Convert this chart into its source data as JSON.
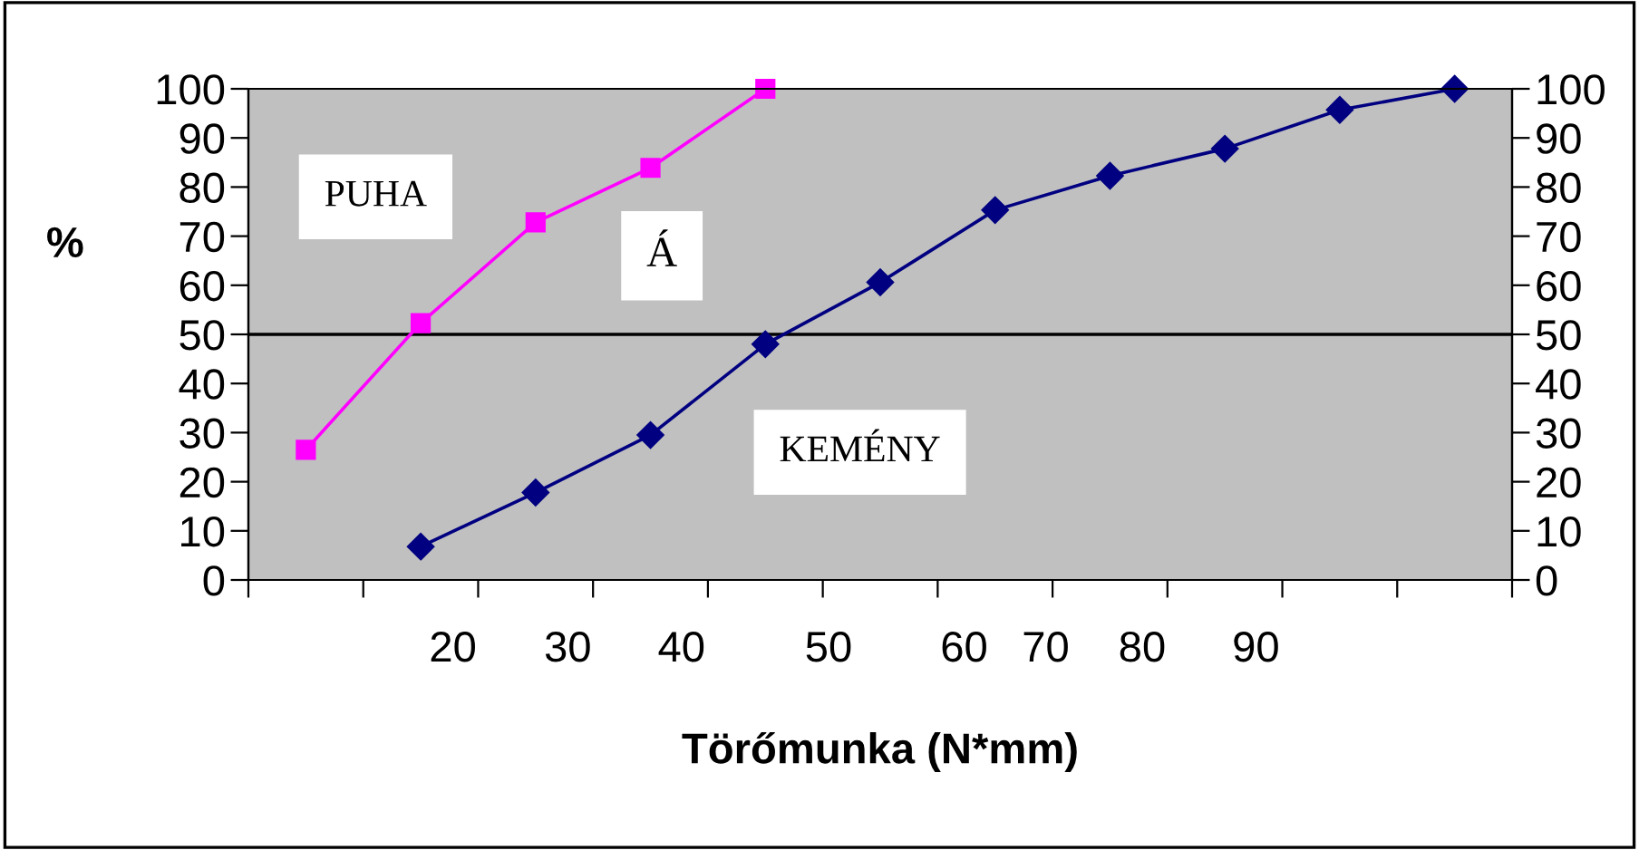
{
  "chart_data": {
    "type": "line",
    "xlabel": "Törőmunka (N*mm)",
    "ylabel": "%",
    "categories": [
      null,
      null,
      null,
      null,
      null,
      null,
      null,
      null,
      null,
      null,
      null
    ],
    "series": [
      {
        "name": "PUHA",
        "color": "#ff00ff",
        "marker": "square",
        "values": [
          26.5,
          52.3,
          72.8,
          83.9,
          100,
          null,
          null,
          null,
          null,
          null,
          null
        ]
      },
      {
        "name": "KEMÉNY",
        "color": "#000080",
        "marker": "diamond",
        "values": [
          null,
          6.8,
          17.8,
          29.5,
          48,
          60.6,
          75.3,
          82.3,
          87.8,
          95.7,
          100
        ]
      }
    ],
    "ylim": [
      0,
      100
    ],
    "yticks": [
      0,
      10,
      20,
      30,
      40,
      50,
      60,
      70,
      80,
      90,
      100
    ],
    "y2lim": [
      0,
      100
    ],
    "y2ticks": [
      0,
      10,
      20,
      30,
      40,
      50,
      60,
      70,
      80,
      90,
      100
    ],
    "ref_lines": [
      {
        "axis": "y",
        "value": 50,
        "color": "#000000"
      }
    ],
    "annotations": [
      "Á",
      "20",
      "30",
      "40",
      "50",
      "60",
      "70",
      "80",
      "90"
    ],
    "grid": false,
    "legend": false
  }
}
